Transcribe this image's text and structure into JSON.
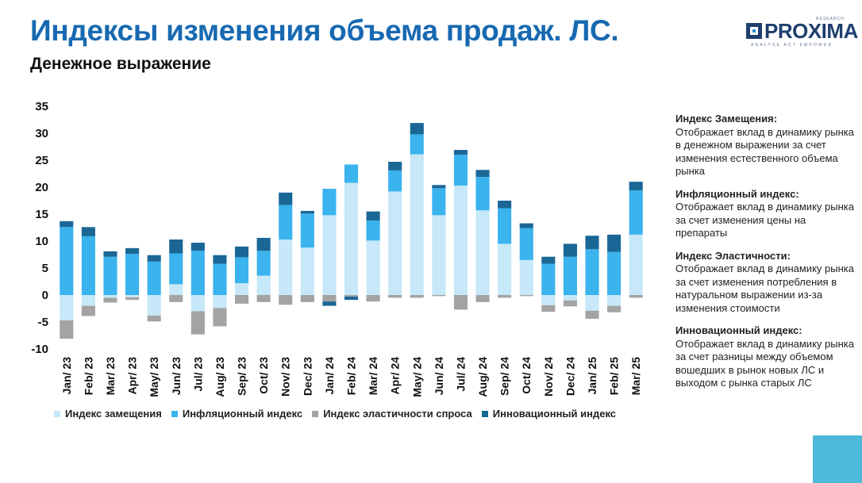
{
  "page": {
    "title": "Индексы изменения объема продаж. ЛС.",
    "subtitle": "Денежное выражение",
    "logo": {
      "word": "PROXIMA",
      "research": "RESEARCH",
      "tagline": "ANALYSE  ACT  EMPOWER"
    }
  },
  "notes": [
    {
      "title": "Индекс Замещения:",
      "text": "Отображает вклад в динамику рынка в денежном выражении за счет изменения естественного объема рынка"
    },
    {
      "title": "Инфляционный индекс:",
      "text": "Отображает вклад в динамику рынка за счет изменения цены на препараты"
    },
    {
      "title": "Индекс Эластичности:",
      "text": "Отображает вклад в динамику рынка за счет изменения потребления в натуральном выражении из-за изменения стоимости"
    },
    {
      "title": "Инновационный индекс:",
      "text": "Отображает вклад в динамику рынка за счет разницы между объемом вошедших в рынок новых ЛС и выходом с рынка старых ЛС"
    }
  ],
  "colors": {
    "title": "#1769b1",
    "replacement": "#c6e8f8",
    "inflation": "#3ab3ee",
    "elasticity": "#a3a3a3",
    "innovation": "#1a6796",
    "corner": "#4cb9d8"
  },
  "chart_data": {
    "type": "bar",
    "stacked": true,
    "title": "",
    "xlabel": "",
    "ylabel": "",
    "ylim": [
      -10,
      35
    ],
    "yticks": [
      35,
      30,
      25,
      20,
      15,
      10,
      5,
      0,
      -5,
      -10
    ],
    "grid": false,
    "legend_position": "bottom",
    "categories": [
      "Jan/ 23",
      "Feb/ 23",
      "Mar/ 23",
      "Apr/ 23",
      "May/ 23",
      "Jun/ 23",
      "Jul/ 23",
      "Aug/ 23",
      "Sep/ 23",
      "Oct/ 23",
      "Nov/ 23",
      "Dec/ 23",
      "Jan/ 24",
      "Feb/ 24",
      "Mar/ 24",
      "Apr/ 24",
      "May/ 24",
      "Jun/ 24",
      "Jul/ 24",
      "Aug/ 24",
      "Sep/ 24",
      "Oct/ 24",
      "Nov/ 24",
      "Dec/ 24",
      "Jan/ 25",
      "Feb/ 25",
      "Mar/ 25"
    ],
    "series": [
      {
        "name": "Индекс замещения",
        "color": "#c6e8f8",
        "values": [
          -4.7,
          -2.0,
          -0.5,
          -0.4,
          -3.8,
          2.0,
          -3.0,
          -2.4,
          2.2,
          3.6,
          10.3,
          8.8,
          14.8,
          20.8,
          10.1,
          19.2,
          26.1,
          14.8,
          20.3,
          15.7,
          9.5,
          6.5,
          -1.9,
          -1.0,
          -2.9,
          -2.0,
          11.2
        ]
      },
      {
        "name": "Инфляционный индекс",
        "color": "#3ab3ee",
        "values": [
          12.6,
          10.9,
          7.1,
          7.6,
          6.2,
          5.7,
          8.2,
          5.8,
          4.8,
          4.6,
          6.4,
          6.3,
          4.9,
          3.4,
          3.7,
          3.9,
          3.7,
          5.0,
          5.7,
          6.2,
          6.6,
          5.9,
          5.8,
          7.1,
          8.5,
          8.0,
          8.2
        ]
      },
      {
        "name": "Индекс эластичности спроса",
        "color": "#a3a3a3",
        "values": [
          -3.4,
          -1.9,
          -0.9,
          -0.5,
          -1.1,
          -1.3,
          -4.3,
          -3.4,
          -1.6,
          -1.3,
          -1.8,
          -1.3,
          -1.2,
          -0.3,
          -1.2,
          -0.5,
          -0.5,
          -0.2,
          -2.7,
          -1.3,
          -0.5,
          -0.2,
          -1.2,
          -1.1,
          -1.5,
          -1.2,
          -0.5
        ]
      },
      {
        "name": "Инновационный индекс",
        "color": "#1a6796",
        "values": [
          1.1,
          1.7,
          1.0,
          1.1,
          1.2,
          2.6,
          1.5,
          1.6,
          2.0,
          2.4,
          2.3,
          0.5,
          -0.8,
          -0.6,
          1.7,
          1.6,
          2.1,
          0.6,
          0.9,
          1.3,
          1.4,
          0.9,
          1.3,
          2.4,
          2.5,
          3.2,
          1.6
        ]
      }
    ]
  }
}
